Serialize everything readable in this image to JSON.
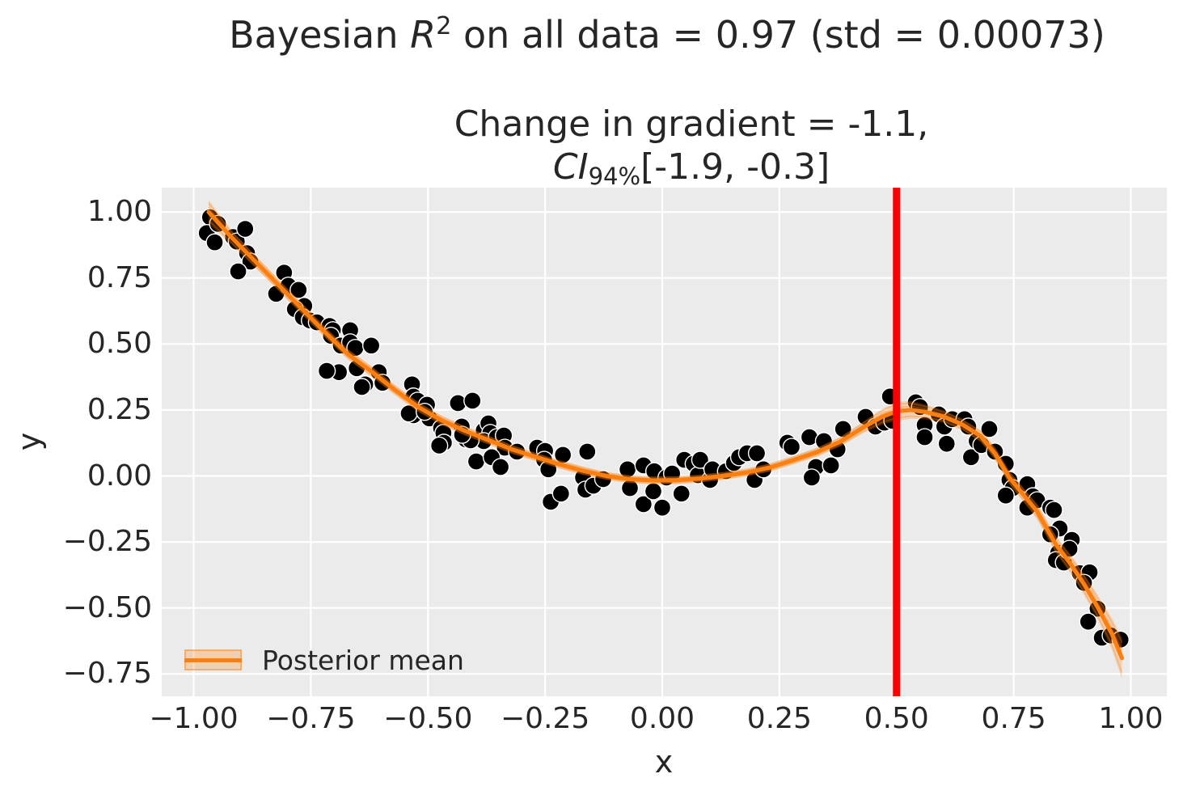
{
  "figure": {
    "title": {
      "prefix": "Bayesian ",
      "math_var": "R",
      "exponent": "2",
      "suffix": " on all data = 0.97 (std = 0.00073)"
    },
    "subtitle": {
      "line1": "Change in gradient = -1.1,",
      "ci_var": "CI",
      "ci_sub": "94%",
      "ci_rest": "[-1.9, -0.3]"
    }
  },
  "colors": {
    "plot_background": "#ebebeb",
    "grid": "#ffffff",
    "scatter": "#000000",
    "scatter_edge": "#ffffff",
    "posterior_mean": "#ff7f0e",
    "credible_band": "#ff7f0e",
    "band_opacity": 0.25,
    "vline": "#ff0000",
    "text": "#262626"
  },
  "chart_data": {
    "type": "scatter",
    "title": "Bayesian R^2 on all data = 0.97 (std = 0.00073)",
    "subtitle": "Change in gradient = -1.1, CI_94%[-1.9, -0.3]",
    "xlabel": "x",
    "ylabel": "y",
    "xlim": [
      -1.07,
      1.08
    ],
    "ylim": [
      -0.83,
      1.09
    ],
    "grid": true,
    "xticks": [
      -1.0,
      -0.75,
      -0.5,
      -0.25,
      0.0,
      0.25,
      0.5,
      0.75,
      1.0
    ],
    "yticks": [
      1.0,
      0.75,
      0.5,
      0.25,
      0.0,
      -0.25,
      -0.5,
      -0.75
    ],
    "legend": {
      "label": "Posterior mean",
      "position": "lower left"
    },
    "vline": {
      "x": 0.5
    },
    "scatter": {
      "points": [
        [
          -0.965,
          0.98
        ],
        [
          -0.972,
          0.92
        ],
        [
          -0.948,
          0.955
        ],
        [
          -0.955,
          0.885
        ],
        [
          -0.916,
          0.905
        ],
        [
          -0.908,
          0.888
        ],
        [
          -0.89,
          0.936
        ],
        [
          -0.886,
          0.844
        ],
        [
          -0.879,
          0.812
        ],
        [
          -0.905,
          0.775
        ],
        [
          -0.807,
          0.77
        ],
        [
          -0.824,
          0.69
        ],
        [
          -0.798,
          0.721
        ],
        [
          -0.776,
          0.705
        ],
        [
          -0.764,
          0.644
        ],
        [
          -0.784,
          0.632
        ],
        [
          -0.767,
          0.601
        ],
        [
          -0.752,
          0.589
        ],
        [
          -0.737,
          0.582
        ],
        [
          -0.71,
          0.568
        ],
        [
          -0.703,
          0.552
        ],
        [
          -0.666,
          0.552
        ],
        [
          -0.707,
          0.531
        ],
        [
          -0.686,
          0.494
        ],
        [
          -0.666,
          0.506
        ],
        [
          -0.655,
          0.485
        ],
        [
          -0.652,
          0.408
        ],
        [
          -0.69,
          0.393
        ],
        [
          -0.716,
          0.398
        ],
        [
          -0.634,
          0.347
        ],
        [
          -0.641,
          0.337
        ],
        [
          -0.605,
          0.393
        ],
        [
          -0.597,
          0.353
        ],
        [
          -0.621,
          0.494
        ],
        [
          -0.534,
          0.347
        ],
        [
          -0.531,
          0.301
        ],
        [
          -0.522,
          0.285
        ],
        [
          -0.531,
          0.23
        ],
        [
          -0.502,
          0.27
        ],
        [
          -0.497,
          0.218
        ],
        [
          -0.541,
          0.237
        ],
        [
          -0.507,
          0.243
        ],
        [
          -0.472,
          0.181
        ],
        [
          -0.467,
          0.163
        ],
        [
          -0.466,
          0.126
        ],
        [
          -0.476,
          0.115
        ],
        [
          -0.428,
          0.187
        ],
        [
          -0.419,
          0.138
        ],
        [
          -0.436,
          0.276
        ],
        [
          -0.405,
          0.285
        ],
        [
          -0.381,
          0.172
        ],
        [
          -0.371,
          0.199
        ],
        [
          -0.367,
          0.163
        ],
        [
          -0.381,
          0.132
        ],
        [
          -0.353,
          0.147
        ],
        [
          -0.338,
          0.153
        ],
        [
          -0.336,
          0.107
        ],
        [
          -0.31,
          0.092
        ],
        [
          -0.397,
          0.055
        ],
        [
          -0.364,
          0.071
        ],
        [
          -0.345,
          0.034
        ],
        [
          -0.409,
          0.135
        ],
        [
          -0.427,
          0.156
        ],
        [
          -0.267,
          0.107
        ],
        [
          -0.25,
          0.095
        ],
        [
          -0.252,
          0.061
        ],
        [
          -0.243,
          0.025
        ],
        [
          -0.212,
          0.08
        ],
        [
          -0.238,
          -0.098
        ],
        [
          -0.216,
          -0.067
        ],
        [
          -0.169,
          -0.006
        ],
        [
          -0.164,
          -0.052
        ],
        [
          -0.16,
          0.092
        ],
        [
          -0.147,
          -0.037
        ],
        [
          -0.126,
          -0.012
        ],
        [
          -0.074,
          0.025
        ],
        [
          -0.069,
          -0.046
        ],
        [
          -0.04,
          0.04
        ],
        [
          -0.04,
          -0.107
        ],
        [
          -0.019,
          -0.058
        ],
        [
          -0.017,
          0.018
        ],
        [
          0.0,
          -0.12
        ],
        [
          0.009,
          -0.006
        ],
        [
          0.021,
          0.009
        ],
        [
          0.041,
          -0.067
        ],
        [
          0.047,
          0.061
        ],
        [
          0.067,
          0.046
        ],
        [
          0.076,
          0.003
        ],
        [
          0.081,
          0.061
        ],
        [
          0.102,
          -0.015
        ],
        [
          0.107,
          0.025
        ],
        [
          0.136,
          0.018
        ],
        [
          0.153,
          0.049
        ],
        [
          0.164,
          0.071
        ],
        [
          0.181,
          0.086
        ],
        [
          0.202,
          0.086
        ],
        [
          0.197,
          -0.015
        ],
        [
          0.216,
          0.025
        ],
        [
          0.267,
          0.126
        ],
        [
          0.276,
          0.11
        ],
        [
          0.314,
          0.147
        ],
        [
          0.328,
          0.034
        ],
        [
          0.319,
          -0.006
        ],
        [
          0.345,
          0.132
        ],
        [
          0.36,
          0.04
        ],
        [
          0.374,
          0.101
        ],
        [
          0.386,
          0.178
        ],
        [
          0.434,
          0.224
        ],
        [
          0.455,
          0.187
        ],
        [
          0.474,
          0.202
        ],
        [
          0.486,
          0.301
        ],
        [
          0.491,
          0.209
        ],
        [
          0.541,
          0.279
        ],
        [
          0.55,
          0.261
        ],
        [
          0.56,
          0.193
        ],
        [
          0.56,
          0.147
        ],
        [
          0.59,
          0.233
        ],
        [
          0.602,
          0.187
        ],
        [
          0.607,
          0.122
        ],
        [
          0.619,
          0.215
        ],
        [
          0.645,
          0.215
        ],
        [
          0.653,
          0.187
        ],
        [
          0.659,
          0.071
        ],
        [
          0.671,
          0.132
        ],
        [
          0.681,
          0.117
        ],
        [
          0.698,
          0.178
        ],
        [
          0.71,
          0.092
        ],
        [
          0.733,
          0.046
        ],
        [
          0.741,
          -0.015
        ],
        [
          0.748,
          -0.046
        ],
        [
          0.733,
          -0.074
        ],
        [
          0.779,
          -0.031
        ],
        [
          0.791,
          -0.077
        ],
        [
          0.779,
          -0.12
        ],
        [
          0.8,
          -0.092
        ],
        [
          0.828,
          -0.12
        ],
        [
          0.836,
          -0.129
        ],
        [
          0.848,
          -0.199
        ],
        [
          0.828,
          -0.221
        ],
        [
          0.845,
          -0.291
        ],
        [
          0.84,
          -0.319
        ],
        [
          0.857,
          -0.328
        ],
        [
          0.866,
          -0.282
        ],
        [
          0.874,
          -0.242
        ],
        [
          0.869,
          -0.276
        ],
        [
          0.891,
          -0.368
        ],
        [
          0.912,
          -0.365
        ],
        [
          0.9,
          -0.405
        ],
        [
          0.929,
          -0.503
        ],
        [
          0.909,
          -0.552
        ],
        [
          0.938,
          -0.613
        ],
        [
          0.957,
          -0.604
        ],
        [
          0.978,
          -0.62
        ]
      ]
    },
    "posterior_mean": {
      "x": [
        -0.968,
        -0.92,
        -0.87,
        -0.82,
        -0.77,
        -0.72,
        -0.67,
        -0.62,
        -0.57,
        -0.52,
        -0.47,
        -0.42,
        -0.37,
        -0.32,
        -0.27,
        -0.22,
        -0.17,
        -0.12,
        -0.07,
        -0.02,
        0.03,
        0.08,
        0.13,
        0.18,
        0.23,
        0.28,
        0.33,
        0.38,
        0.43,
        0.47,
        0.5,
        0.53,
        0.56,
        0.6,
        0.64,
        0.68,
        0.71,
        0.74,
        0.77,
        0.8,
        0.84,
        0.87,
        0.9,
        0.93,
        0.96,
        0.981
      ],
      "y": [
        1.0,
        0.905,
        0.815,
        0.725,
        0.635,
        0.545,
        0.46,
        0.395,
        0.325,
        0.26,
        0.21,
        0.17,
        0.135,
        0.1,
        0.072,
        0.044,
        0.02,
        0.0,
        -0.012,
        -0.017,
        -0.016,
        -0.01,
        0.0,
        0.013,
        0.032,
        0.06,
        0.09,
        0.13,
        0.185,
        0.225,
        0.245,
        0.25,
        0.243,
        0.225,
        0.195,
        0.15,
        0.085,
        -0.005,
        -0.07,
        -0.135,
        -0.26,
        -0.33,
        -0.41,
        -0.5,
        -0.6,
        -0.69
      ]
    },
    "credible_band": {
      "halfwidth": [
        0.045,
        0.028,
        0.024,
        0.022,
        0.022,
        0.021,
        0.02,
        0.02,
        0.019,
        0.019,
        0.018,
        0.018,
        0.017,
        0.017,
        0.016,
        0.016,
        0.016,
        0.015,
        0.015,
        0.015,
        0.015,
        0.015,
        0.015,
        0.015,
        0.016,
        0.016,
        0.017,
        0.018,
        0.022,
        0.03,
        0.036,
        0.034,
        0.028,
        0.024,
        0.022,
        0.023,
        0.024,
        0.026,
        0.027,
        0.029,
        0.033,
        0.036,
        0.04,
        0.047,
        0.06,
        0.078
      ]
    }
  }
}
